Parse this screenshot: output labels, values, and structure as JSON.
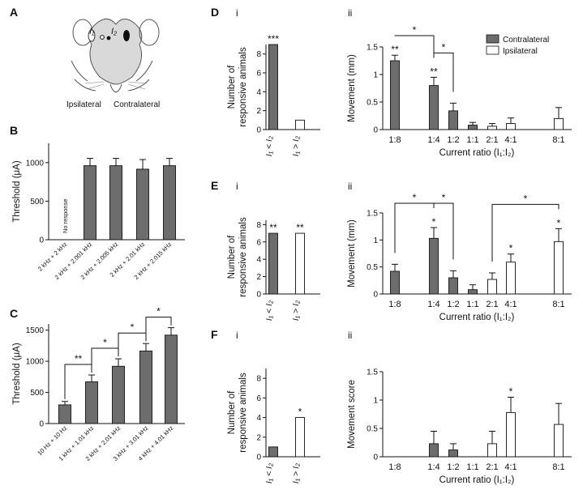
{
  "panel_labels": {
    "A": "A",
    "B": "B",
    "C": "C",
    "D": "D",
    "E": "E",
    "F": "F"
  },
  "sub_labels": {
    "i": "i",
    "ii": "ii"
  },
  "colors": {
    "contralateral": "#6d6d6d",
    "ipsilateral": "#ffffff",
    "outline": "#111111",
    "mouse_head": "#d9d9d9"
  },
  "panelA": {
    "ipsilateral": "Ipsilateral",
    "contralateral": "Contralateral",
    "i1": "I₁",
    "i2": "I₂"
  },
  "ratio_axis_label": "Current ratio (I₁:I₂)",
  "legend": {
    "contralateral": "Contralateral",
    "ipsilateral": "Ipsilateral"
  },
  "count_categories": [
    "I₁ < I₂",
    "I₁ > I₂"
  ],
  "chart_data": [
    {
      "id": "B",
      "type": "bar",
      "ylabel": "Threshold (μA)",
      "ylim": [
        0,
        1250
      ],
      "yticks": [
        0,
        500,
        1000
      ],
      "categories": [
        "2 kHz + 2 kHz",
        "2 kHz + 2.001 kHz",
        "2 kHz + 2.005 kHz",
        "2 kHz + 2.01 kHz",
        "2 kHz + 2.015 kHz"
      ],
      "values": [
        null,
        960,
        960,
        915,
        960
      ],
      "errors": [
        null,
        95,
        95,
        125,
        95
      ],
      "annotations": [
        {
          "category": "2 kHz + 2 kHz",
          "text": "No response"
        }
      ]
    },
    {
      "id": "C",
      "type": "bar",
      "ylabel": "Threshold (μA)",
      "ylim": [
        0,
        1600
      ],
      "yticks": [
        0,
        500,
        1000,
        1500
      ],
      "categories": [
        "10 Hz + 10 Hz",
        "1 kHz + 1.01 kHz",
        "2 kHz + 2.01 kHz",
        "3 kHz + 3.01 kHz",
        "4 kHz + 4.01 kHz"
      ],
      "values": [
        300,
        670,
        920,
        1165,
        1420
      ],
      "errors": [
        55,
        110,
        120,
        120,
        120
      ],
      "significance": [
        {
          "from": "1 kHz + 1.01 kHz",
          "to": "10 Hz + 10 Hz",
          "label": "**"
        },
        {
          "from": "1 kHz + 1.01 kHz",
          "to": "2 kHz + 2.01 kHz",
          "label": "*"
        },
        {
          "from": "2 kHz + 2.01 kHz",
          "to": "3 kHz + 3.01 kHz",
          "label": "*"
        },
        {
          "from": "3 kHz + 3.01 kHz",
          "to": "4 kHz + 4.01 kHz",
          "label": "*"
        }
      ]
    },
    {
      "id": "Di",
      "type": "bar",
      "ylabel": "Number of responsive animals",
      "ylim": [
        0,
        9
      ],
      "yticks": [
        0,
        2,
        4,
        6,
        8
      ],
      "categories": [
        "I₁ < I₂",
        "I₁ > I₂"
      ],
      "values": [
        9,
        1
      ],
      "fills": [
        "contralateral",
        "ipsilateral"
      ],
      "stars": [
        "***",
        ""
      ]
    },
    {
      "id": "Dii",
      "type": "bar",
      "ylabel": "Movement (mm)",
      "xlabel": "Current ratio (I₁:I₂)",
      "ylim": [
        0,
        1.5
      ],
      "yticks": [
        0,
        0.5,
        1,
        1.5
      ],
      "categories": [
        "1:8",
        "1:4",
        "1:2",
        "1:1",
        "2:1",
        "4:1",
        "8:1"
      ],
      "series": [
        {
          "name": "Contralateral",
          "values": [
            1.25,
            0.8,
            0.34,
            0.08,
            null,
            null,
            null
          ],
          "errors": [
            0.1,
            0.15,
            0.14,
            0.05,
            null,
            null,
            null
          ],
          "stars": [
            "**",
            "**",
            "",
            "",
            "",
            "",
            ""
          ]
        },
        {
          "name": "Ipsilateral",
          "values": [
            null,
            null,
            null,
            null,
            0.06,
            0.11,
            0.2
          ],
          "errors": [
            null,
            null,
            null,
            null,
            0.05,
            0.1,
            0.2
          ],
          "stars": [
            "",
            "",
            "",
            "",
            "",
            "",
            ""
          ]
        }
      ],
      "significance": [
        {
          "from": "1:8",
          "to": "1:4",
          "label": "*"
        },
        {
          "from": "1:4",
          "to": "1:2",
          "label": "*"
        }
      ]
    },
    {
      "id": "Ei",
      "type": "bar",
      "ylabel": "Number of responsive animals",
      "ylim": [
        0,
        8.5
      ],
      "yticks": [
        0,
        2,
        4,
        6,
        8
      ],
      "categories": [
        "I₁ < I₂",
        "I₁ > I₂"
      ],
      "values": [
        7,
        7
      ],
      "fills": [
        "contralateral",
        "ipsilateral"
      ],
      "stars": [
        "**",
        "**"
      ]
    },
    {
      "id": "Eii",
      "type": "bar",
      "ylabel": "Movement (mm)",
      "xlabel": "Current ratio (I₁:I₂)",
      "ylim": [
        0,
        1.5
      ],
      "yticks": [
        0,
        0.5,
        1,
        1.5
      ],
      "categories": [
        "1:8",
        "1:4",
        "1:2",
        "1:1",
        "2:1",
        "4:1",
        "8:1"
      ],
      "series": [
        {
          "name": "Contralateral",
          "values": [
            0.42,
            1.03,
            0.3,
            0.08,
            null,
            null,
            null
          ],
          "errors": [
            0.13,
            0.2,
            0.13,
            0.09,
            null,
            null,
            null
          ],
          "stars": [
            "",
            "*",
            "",
            "",
            "",
            "",
            ""
          ]
        },
        {
          "name": "Ipsilateral",
          "values": [
            null,
            null,
            null,
            null,
            0.27,
            0.59,
            0.97
          ],
          "errors": [
            null,
            null,
            null,
            null,
            0.12,
            0.15,
            0.24
          ],
          "stars": [
            "",
            "",
            "",
            "",
            "",
            "*",
            "*"
          ]
        }
      ],
      "significance": [
        {
          "from": "1:8",
          "to": "1:4",
          "label": "*"
        },
        {
          "from": "1:4",
          "to": "1:2",
          "label": "*"
        },
        {
          "from": "2:1",
          "to": "8:1",
          "label": "*"
        }
      ]
    },
    {
      "id": "Fi",
      "type": "bar",
      "ylabel": "Number of responsive animals",
      "ylim": [
        0,
        9
      ],
      "yticks": [
        0,
        2,
        4,
        6,
        8
      ],
      "categories": [
        "I₁ < I₂",
        "I₁ > I₂"
      ],
      "values": [
        1,
        4
      ],
      "fills": [
        "contralateral",
        "ipsilateral"
      ],
      "stars": [
        "",
        "*"
      ]
    },
    {
      "id": "Fii",
      "type": "bar",
      "ylabel": "Movement score",
      "xlabel": "Current ratio (I₁:I₂)",
      "ylim": [
        0,
        1.5
      ],
      "yticks": [
        0,
        0.5,
        1,
        1.5
      ],
      "categories": [
        "1:8",
        "1:4",
        "1:2",
        "1:1",
        "2:1",
        "4:1",
        "8:1"
      ],
      "series": [
        {
          "name": "Contralateral",
          "values": [
            null,
            0.23,
            0.12,
            null,
            null,
            null,
            null
          ],
          "errors": [
            null,
            0.22,
            0.11,
            null,
            null,
            null,
            null
          ],
          "stars": [
            "",
            "",
            "",
            "",
            "",
            "",
            ""
          ]
        },
        {
          "name": "Ipsilateral",
          "values": [
            null,
            null,
            null,
            null,
            0.23,
            0.78,
            0.57
          ],
          "errors": [
            null,
            null,
            null,
            null,
            0.22,
            0.27,
            0.37
          ],
          "stars": [
            "",
            "",
            "",
            "",
            "",
            "*",
            ""
          ]
        }
      ]
    }
  ]
}
